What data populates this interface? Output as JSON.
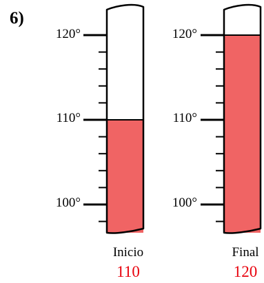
{
  "problem_number": "6)",
  "fill_color": "#f06464",
  "thermometers": [
    {
      "label": "Inicio",
      "value": "110",
      "reading": 110,
      "tick_labels": [
        "120°",
        "110°",
        "100°"
      ]
    },
    {
      "label": "Final",
      "value": "120",
      "reading": 120,
      "tick_labels": [
        "120°",
        "110°",
        "100°"
      ]
    }
  ]
}
